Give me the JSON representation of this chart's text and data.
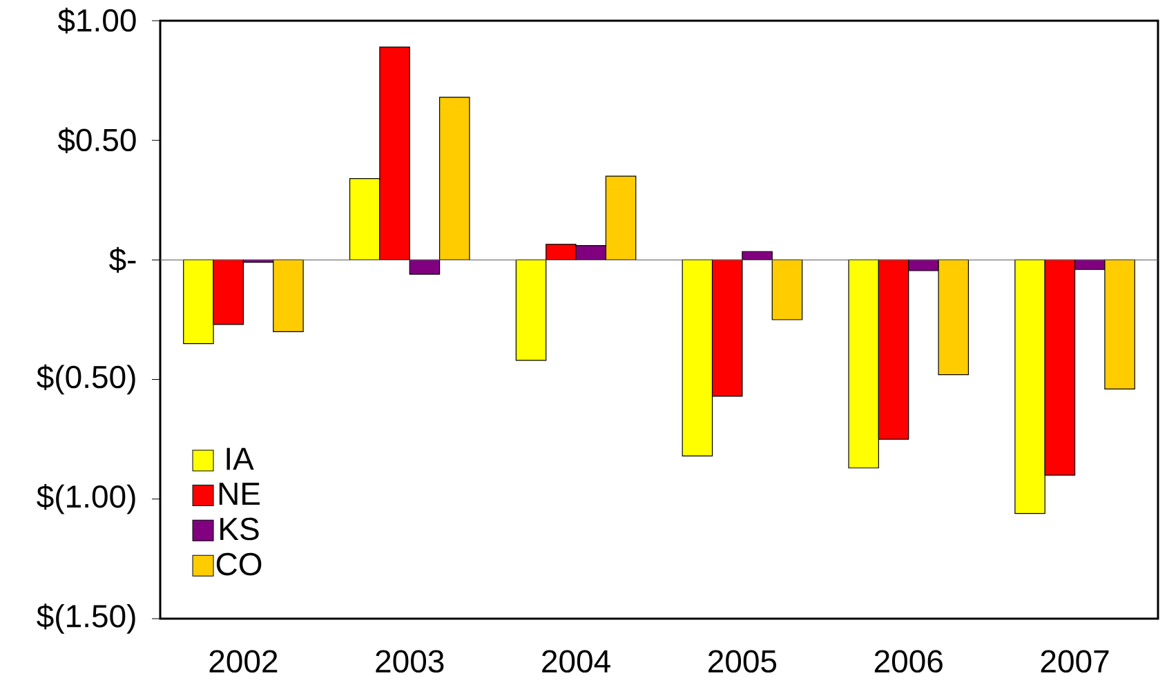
{
  "chart_data": {
    "type": "bar",
    "categories": [
      "2002",
      "2003",
      "2004",
      "2005",
      "2006",
      "2007"
    ],
    "series": [
      {
        "name": "IA",
        "color": "#ffff00",
        "values": [
          -0.35,
          0.34,
          -0.42,
          -0.82,
          -0.87,
          -1.06
        ]
      },
      {
        "name": "NE",
        "color": "#ff0000",
        "values": [
          -0.27,
          0.89,
          0.065,
          -0.57,
          -0.75,
          -0.9
        ]
      },
      {
        "name": "KS",
        "color": "#800080",
        "values": [
          -0.01,
          -0.06,
          0.06,
          0.035,
          -0.045,
          -0.04
        ]
      },
      {
        "name": "CO",
        "color": "#ffcc00",
        "values": [
          -0.3,
          0.68,
          0.35,
          -0.25,
          -0.48,
          -0.54
        ]
      }
    ],
    "ylim": [
      -1.5,
      1.0
    ],
    "yticks": [
      {
        "value": 1.0,
        "label": "$1.00"
      },
      {
        "value": 0.5,
        "label": "$0.50"
      },
      {
        "value": 0,
        "label": "$-"
      },
      {
        "value": -0.5,
        "label": "$(0.50)"
      },
      {
        "value": -1.0,
        "label": "$(1.00)"
      },
      {
        "value": -1.5,
        "label": "$(1.50)"
      }
    ],
    "legend": "bottom left"
  }
}
